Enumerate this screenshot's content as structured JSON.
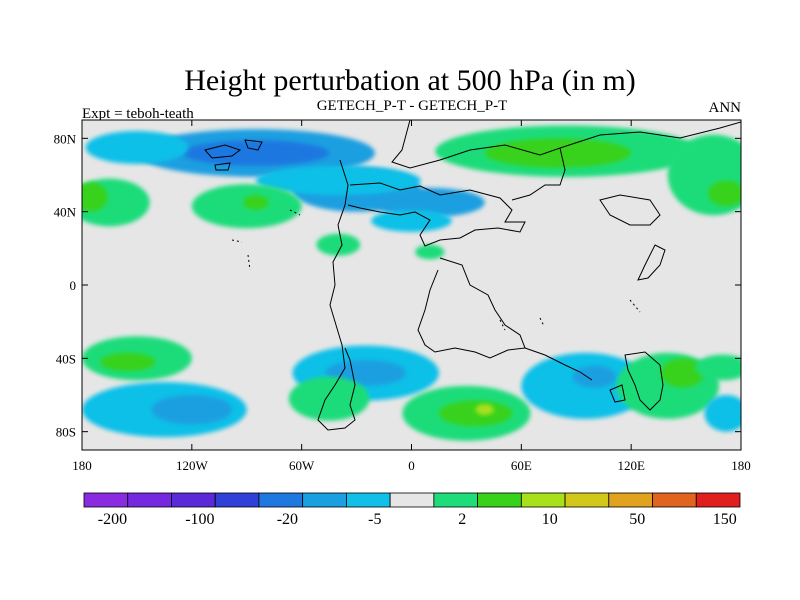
{
  "chart_data": {
    "type": "heatmap",
    "title": "Height perturbation at 500 hPa (in m)",
    "subtitle_left": "Expt = teboh-teath",
    "subtitle_center": "GETECH_P-T - GETECH_P-T",
    "subtitle_right": "ANN",
    "variable": "500 hPa height perturbation",
    "units": "m",
    "x_range": [
      -180,
      180
    ],
    "y_range": [
      -90,
      90
    ],
    "x_ticks": [
      {
        "value": -180,
        "label": "180"
      },
      {
        "value": -120,
        "label": "120W"
      },
      {
        "value": -60,
        "label": "60W"
      },
      {
        "value": 0,
        "label": "0"
      },
      {
        "value": 60,
        "label": "60E"
      },
      {
        "value": 120,
        "label": "120E"
      },
      {
        "value": 180,
        "label": "180"
      }
    ],
    "y_ticks": [
      {
        "value": 80,
        "label": "80N"
      },
      {
        "value": 40,
        "label": "40N"
      },
      {
        "value": 0,
        "label": "0"
      },
      {
        "value": -40,
        "label": "40S"
      },
      {
        "value": -80,
        "label": "80S"
      }
    ],
    "levels": [
      -200,
      -100,
      -50,
      -20,
      -10,
      -5,
      -2,
      2,
      5,
      10,
      20,
      50,
      100,
      150,
      200
    ],
    "colorbar_colors": [
      "#8a2be2",
      "#7528e0",
      "#5a2ad8",
      "#2f3fd8",
      "#1e78e0",
      "#1a9fe0",
      "#10c0e8",
      "#e6e6e6",
      "#1edc7a",
      "#38d21a",
      "#a8e01a",
      "#d2c81a",
      "#e1a21e",
      "#e0641e",
      "#e01e1e"
    ],
    "colorbar_labels": [
      {
        "index": 1,
        "label": "-200"
      },
      {
        "index": 3,
        "label": "-100"
      },
      {
        "index": 5,
        "label": "-20"
      },
      {
        "index": 7,
        "label": "-5"
      },
      {
        "index": 9,
        "label": "2"
      },
      {
        "index": 11,
        "label": "10"
      },
      {
        "index": 13,
        "label": "50"
      },
      {
        "index": 15,
        "label": "150"
      }
    ],
    "regions": [
      {
        "lon": -85,
        "lat": 72,
        "rx": 65,
        "ry": 13,
        "level": -10
      },
      {
        "lon": -85,
        "lat": 72,
        "rx": 40,
        "ry": 7,
        "level": -20
      },
      {
        "lon": -30,
        "lat": 52,
        "rx": 35,
        "ry": 12,
        "level": -10
      },
      {
        "lon": 10,
        "lat": 45,
        "rx": 30,
        "ry": 8,
        "level": -10
      },
      {
        "lon": -40,
        "lat": 57,
        "rx": 45,
        "ry": 8,
        "level": -5
      },
      {
        "lon": 0,
        "lat": 35,
        "rx": 22,
        "ry": 6,
        "level": -5
      },
      {
        "lon": -150,
        "lat": 75,
        "rx": 28,
        "ry": 9,
        "level": -5
      },
      {
        "lon": 85,
        "lat": 73,
        "rx": 72,
        "ry": 14,
        "level": 5
      },
      {
        "lon": 80,
        "lat": 72,
        "rx": 40,
        "ry": 8,
        "level": 10
      },
      {
        "lon": 165,
        "lat": 60,
        "rx": 25,
        "ry": 22,
        "level": 5
      },
      {
        "lon": 172,
        "lat": 50,
        "rx": 10,
        "ry": 7,
        "level": 10
      },
      {
        "lon": -165,
        "lat": 45,
        "rx": 22,
        "ry": 13,
        "level": 5
      },
      {
        "lon": -175,
        "lat": 48,
        "rx": 9,
        "ry": 8,
        "level": 10
      },
      {
        "lon": -90,
        "lat": 43,
        "rx": 30,
        "ry": 12,
        "level": 5
      },
      {
        "lon": -85,
        "lat": 45,
        "rx": 7,
        "ry": 4,
        "level": 10
      },
      {
        "lon": -40,
        "lat": 22,
        "rx": 12,
        "ry": 6,
        "level": 5
      },
      {
        "lon": 10,
        "lat": 18,
        "rx": 8,
        "ry": 4,
        "level": 5
      },
      {
        "lon": -150,
        "lat": -40,
        "rx": 30,
        "ry": 12,
        "level": 5
      },
      {
        "lon": -155,
        "lat": -42,
        "rx": 15,
        "ry": 5,
        "level": 10
      },
      {
        "lon": -135,
        "lat": -68,
        "rx": 45,
        "ry": 15,
        "level": -5
      },
      {
        "lon": -120,
        "lat": -68,
        "rx": 22,
        "ry": 8,
        "level": -10
      },
      {
        "lon": -25,
        "lat": -48,
        "rx": 40,
        "ry": 15,
        "level": -5
      },
      {
        "lon": -25,
        "lat": -48,
        "rx": 22,
        "ry": 7,
        "level": -10
      },
      {
        "lon": -45,
        "lat": -62,
        "rx": 22,
        "ry": 12,
        "level": 5
      },
      {
        "lon": 30,
        "lat": -70,
        "rx": 35,
        "ry": 15,
        "level": 5
      },
      {
        "lon": 35,
        "lat": -70,
        "rx": 20,
        "ry": 7,
        "level": 10
      },
      {
        "lon": 40,
        "lat": -68,
        "rx": 5,
        "ry": 3,
        "level": 20
      },
      {
        "lon": 95,
        "lat": -55,
        "rx": 35,
        "ry": 18,
        "level": -5
      },
      {
        "lon": 100,
        "lat": -50,
        "rx": 12,
        "ry": 6,
        "level": -10
      },
      {
        "lon": 140,
        "lat": -55,
        "rx": 28,
        "ry": 18,
        "level": 5
      },
      {
        "lon": 148,
        "lat": -48,
        "rx": 12,
        "ry": 8,
        "level": 10
      },
      {
        "lon": 170,
        "lat": -45,
        "rx": 15,
        "ry": 7,
        "level": 5
      },
      {
        "lon": 172,
        "lat": -70,
        "rx": 12,
        "ry": 10,
        "level": -5
      }
    ]
  }
}
